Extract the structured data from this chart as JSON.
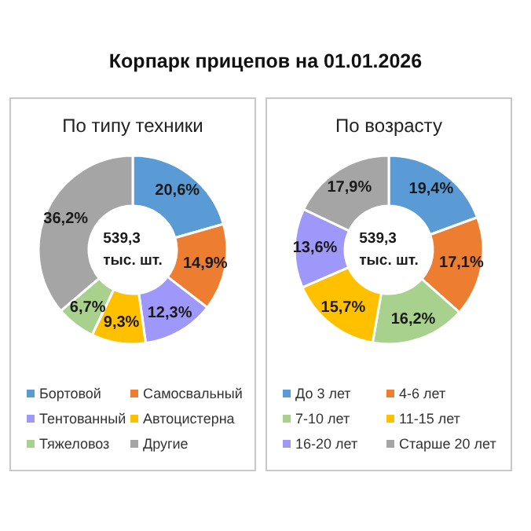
{
  "chart_data": [
    {
      "type": "donut",
      "title": "Корпарк прицепов на 01.01.2026",
      "subtitle": "По типу техники",
      "categories": [
        "Бортовой",
        "Самосвальный",
        "Тентованный",
        "Автоцистерна",
        "Тяжеловоз",
        "Другие"
      ],
      "values": [
        20.6,
        14.9,
        12.3,
        9.3,
        6.7,
        36.2
      ],
      "colors": [
        "#5b9bd5",
        "#ed7d31",
        "#9e98fa",
        "#ffc000",
        "#a9d18e",
        "#a5a5a5"
      ],
      "value_labels": [
        "20,6%",
        "14,9%",
        "12,3%",
        "9,3%",
        "6,7%",
        "36,2%"
      ],
      "annotations": [
        "539,3\nтыс. шт."
      ],
      "legend": "bottom"
    },
    {
      "type": "donut",
      "subtitle": "По возрасту",
      "categories": [
        "До 3 лет",
        "4-6 лет",
        "7-10 лет",
        "11-15 лет",
        "16-20 лет",
        "Старше 20 лет"
      ],
      "values": [
        19.4,
        17.1,
        16.2,
        15.7,
        13.6,
        17.9
      ],
      "colors": [
        "#5b9bd5",
        "#ed7d31",
        "#a9d18e",
        "#ffc000",
        "#9e98fa",
        "#a5a5a5"
      ],
      "value_labels": [
        "19,4%",
        "17,1%",
        "16,2%",
        "15,7%",
        "13,6%",
        "17,9%"
      ],
      "annotations": [
        "539,3\nтыс. шт."
      ],
      "legend": "bottom"
    }
  ]
}
